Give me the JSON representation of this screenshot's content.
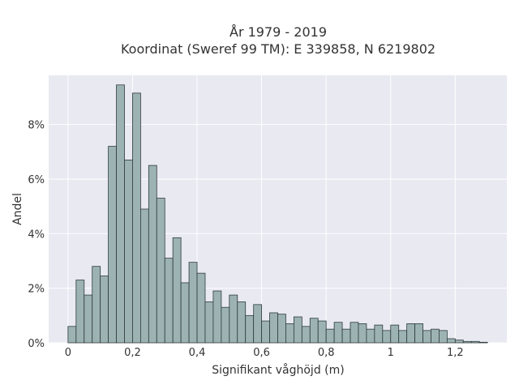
{
  "chart_data": {
    "type": "bar",
    "title": "År 1979 - 2019",
    "subtitle": "Koordinat (Sweref 99 TM): E 339858, N 6219802",
    "xlabel": "Signifikant våghöjd (m)",
    "ylabel": "Andel",
    "xlim": [
      -0.06,
      1.36
    ],
    "ylim": [
      0,
      9.8
    ],
    "x_ticks": [
      {
        "value": 0,
        "label": "0"
      },
      {
        "value": 0.2,
        "label": "0,2"
      },
      {
        "value": 0.4,
        "label": "0,4"
      },
      {
        "value": 0.6,
        "label": "0,6"
      },
      {
        "value": 0.8,
        "label": "0,8"
      },
      {
        "value": 1.0,
        "label": "1"
      },
      {
        "value": 1.2,
        "label": "1,2"
      }
    ],
    "y_ticks": [
      {
        "value": 0,
        "label": "0%"
      },
      {
        "value": 2,
        "label": "2%"
      },
      {
        "value": 4,
        "label": "4%"
      },
      {
        "value": 6,
        "label": "6%"
      },
      {
        "value": 8,
        "label": "8%"
      }
    ],
    "grid": true,
    "bin_width": 0.025,
    "bin_start": 0.0,
    "values": [
      0.6,
      2.3,
      1.75,
      2.8,
      2.45,
      7.2,
      9.45,
      6.7,
      9.15,
      4.9,
      6.5,
      5.3,
      3.1,
      3.85,
      2.2,
      2.95,
      2.55,
      1.5,
      1.9,
      1.3,
      1.75,
      1.5,
      1.0,
      1.4,
      0.8,
      1.1,
      1.05,
      0.7,
      0.95,
      0.6,
      0.9,
      0.8,
      0.5,
      0.75,
      0.5,
      0.75,
      0.7,
      0.5,
      0.65,
      0.45,
      0.65,
      0.45,
      0.7,
      0.7,
      0.45,
      0.5,
      0.45,
      0.15,
      0.1,
      0.05,
      0.05,
      0.02
    ],
    "colors": {
      "bar_fill": "#9db3b3",
      "bar_stroke": "#2f3b3b",
      "plot_background": "#e8e9f1",
      "grid": "#ffffff",
      "text": "#333333"
    }
  }
}
